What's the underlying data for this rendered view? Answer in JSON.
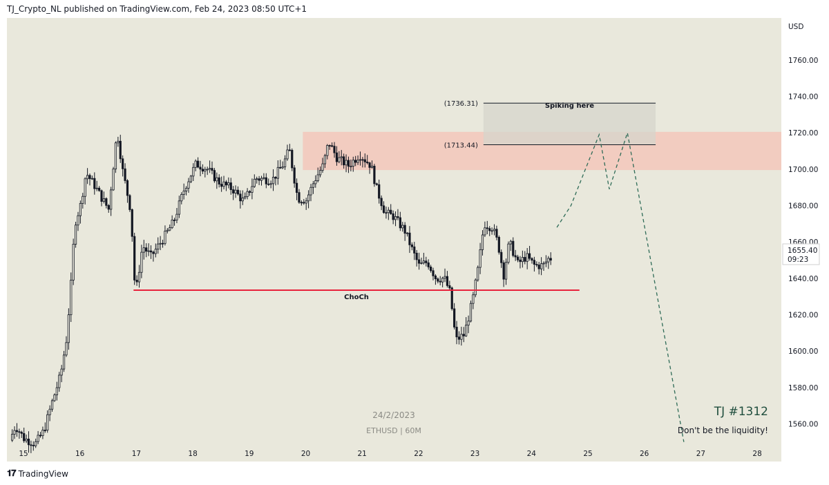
{
  "header": {
    "publisher_line": "TJ_Crypto_NL published on TradingView.com, Feb 24, 2023 08:50 UTC+1"
  },
  "footer": {
    "logo_text": "TradingView"
  },
  "colors": {
    "background": "#e9e8dc",
    "candle": "#131722",
    "choch_line": "#e8223b",
    "supply_zone": "#f3c7bb",
    "spike_zone": "#d6d6cc",
    "projection": "#2e6b57"
  },
  "chart_data": {
    "type": "candlestick",
    "symbol_label": "ETHUSD | 60M",
    "date_label": "24/2/2023",
    "currency_label": "USD",
    "x_ticks": [
      "15",
      "16",
      "17",
      "18",
      "19",
      "20",
      "21",
      "22",
      "23",
      "24",
      "25",
      "26",
      "27",
      "28"
    ],
    "y_ticks": [
      1560,
      1580,
      1600,
      1620,
      1640,
      1660,
      1680,
      1700,
      1720,
      1740,
      1760
    ],
    "ylim": [
      1549,
      1783
    ],
    "xlim": [
      14.8,
      28.2
    ],
    "price_tag": {
      "price": "1655.40",
      "countdown": "09:23"
    },
    "levels": [
      {
        "label": "(1736.31)",
        "price": 1736.31,
        "x_from": 23.15,
        "x_to": 26.2
      },
      {
        "label": "(1713.44)",
        "price": 1713.44,
        "x_from": 23.15,
        "x_to": 26.2
      }
    ],
    "zones": [
      {
        "name": "supply-zone",
        "x_from": 19.95,
        "x_to": 28.45,
        "y_from": 1699.5,
        "y_to": 1720.5
      },
      {
        "name": "spike-zone",
        "x_from": 23.15,
        "x_to": 26.2,
        "y_from": 1713.44,
        "y_to": 1736.31,
        "label": "Spiking here"
      }
    ],
    "choch": {
      "label": "ChoCh",
      "price": 1633.5,
      "x_from": 16.95,
      "x_to": 24.85
    },
    "projection_path": [
      [
        24.45,
        1668
      ],
      [
        24.7,
        1680
      ],
      [
        25.2,
        1719
      ],
      [
        25.38,
        1689
      ],
      [
        25.7,
        1720
      ],
      [
        26.7,
        1550
      ]
    ],
    "annotations": {
      "title": "TJ #1312",
      "subtitle": "Don't be the liquidity!"
    },
    "anchors": [
      [
        14.8,
        1551
      ],
      [
        14.9,
        1559
      ],
      [
        15.05,
        1552
      ],
      [
        15.25,
        1549
      ],
      [
        15.4,
        1556
      ],
      [
        15.55,
        1572
      ],
      [
        15.7,
        1587
      ],
      [
        15.8,
        1606
      ],
      [
        15.88,
        1635
      ],
      [
        15.95,
        1670
      ],
      [
        16.05,
        1680
      ],
      [
        16.15,
        1698
      ],
      [
        16.3,
        1691
      ],
      [
        16.45,
        1683
      ],
      [
        16.55,
        1678
      ],
      [
        16.7,
        1721
      ],
      [
        16.8,
        1699
      ],
      [
        16.95,
        1676
      ],
      [
        17.0,
        1640
      ],
      [
        17.05,
        1636
      ],
      [
        17.15,
        1658
      ],
      [
        17.3,
        1652
      ],
      [
        17.5,
        1661
      ],
      [
        17.7,
        1671
      ],
      [
        17.9,
        1690
      ],
      [
        18.1,
        1703
      ],
      [
        18.3,
        1700
      ],
      [
        18.5,
        1693
      ],
      [
        18.75,
        1689
      ],
      [
        18.95,
        1682
      ],
      [
        19.15,
        1695
      ],
      [
        19.45,
        1694
      ],
      [
        19.65,
        1703
      ],
      [
        19.75,
        1711
      ],
      [
        19.9,
        1684
      ],
      [
        20.05,
        1683
      ],
      [
        20.2,
        1694
      ],
      [
        20.35,
        1702
      ],
      [
        20.45,
        1715
      ],
      [
        20.6,
        1706
      ],
      [
        20.8,
        1702
      ],
      [
        21.0,
        1708
      ],
      [
        21.2,
        1702
      ],
      [
        21.3,
        1689
      ],
      [
        21.45,
        1676
      ],
      [
        21.6,
        1674
      ],
      [
        21.8,
        1666
      ],
      [
        21.95,
        1654
      ],
      [
        22.05,
        1647
      ],
      [
        22.2,
        1649
      ],
      [
        22.35,
        1640
      ],
      [
        22.5,
        1640
      ],
      [
        22.6,
        1632
      ],
      [
        22.7,
        1606
      ],
      [
        22.85,
        1609
      ],
      [
        23.0,
        1628
      ],
      [
        23.1,
        1646
      ],
      [
        23.2,
        1670
      ],
      [
        23.35,
        1668
      ],
      [
        23.45,
        1659
      ],
      [
        23.55,
        1642
      ],
      [
        23.65,
        1660
      ],
      [
        23.8,
        1648
      ],
      [
        23.95,
        1652
      ],
      [
        24.1,
        1647
      ],
      [
        24.25,
        1647
      ],
      [
        24.35,
        1651
      ]
    ]
  }
}
